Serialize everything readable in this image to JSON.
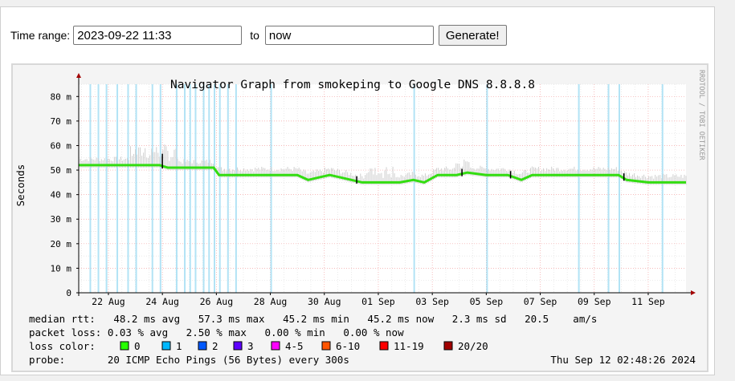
{
  "toolbar": {
    "time_range_label": "Time range:",
    "from_value": "2023-09-22 11:33",
    "to_label": "to",
    "to_value": "now",
    "generate_label": "Generate!"
  },
  "graph": {
    "title": "Navigator Graph from smokeping to Google DNS 8.8.8.8",
    "side_text": "RRDTOOL / TOBI OETIKER",
    "stats": {
      "median_rtt": "median rtt:   48.2 ms avg   57.3 ms max   45.2 ms min   45.2 ms now   2.3 ms sd   20.5    am/s",
      "packet_loss": "packet loss: 0.03 % avg   2.50 % max   0.00 % min   0.00 % now",
      "loss_color_label": "loss color:",
      "probe": "probe:       20 ICMP Echo Pings (56 Bytes) every 300s",
      "timestamp": "Thu Sep 12 02:48:26 2024"
    },
    "loss_legend": [
      {
        "label": "0",
        "color": "#26ff00"
      },
      {
        "label": "1",
        "color": "#00b8ff"
      },
      {
        "label": "2",
        "color": "#0059ff"
      },
      {
        "label": "3",
        "color": "#5e00ff"
      },
      {
        "label": "4-5",
        "color": "#ff00ff"
      },
      {
        "label": "6-10",
        "color": "#ff5500"
      },
      {
        "label": "11-19",
        "color": "#ff0000"
      },
      {
        "label": "20/20",
        "color": "#a10000"
      }
    ]
  },
  "chart_data": {
    "type": "line",
    "title": "Navigator Graph from smokeping to Google DNS 8.8.8.8",
    "ylabel": "Seconds",
    "ylim": [
      0,
      0.085
    ],
    "y_ticks": [
      "0",
      "10 m",
      "20 m",
      "30 m",
      "40 m",
      "50 m",
      "60 m",
      "70 m",
      "80 m"
    ],
    "x_ticks": [
      "22 Aug",
      "24 Aug",
      "26 Aug",
      "28 Aug",
      "30 Aug",
      "01 Sep",
      "03 Sep",
      "05 Sep",
      "07 Sep",
      "09 Sep",
      "11 Sep"
    ],
    "x_range_days": [
      -1.1,
      21.4
    ],
    "grid": true,
    "series": [
      {
        "x": [
          -1.1,
          0.5,
          1.5,
          1.9,
          2.2,
          3.0,
          3.9,
          4.1,
          5.0,
          6.0,
          7.0,
          7.4,
          7.8,
          8.2,
          8.6,
          9.0,
          9.4,
          10.0,
          10.8,
          11.3,
          11.7,
          12.2,
          12.5,
          12.9,
          13.3,
          14.0,
          14.8,
          15.3,
          15.7,
          16.0,
          17.0,
          18.0,
          18.9,
          19.2,
          20.0,
          21.4
        ],
        "y": [
          0.052,
          0.052,
          0.052,
          0.052,
          0.051,
          0.051,
          0.051,
          0.048,
          0.048,
          0.048,
          0.048,
          0.046,
          0.047,
          0.048,
          0.047,
          0.046,
          0.045,
          0.045,
          0.045,
          0.046,
          0.045,
          0.048,
          0.048,
          0.048,
          0.049,
          0.048,
          0.048,
          0.046,
          0.048,
          0.048,
          0.048,
          0.048,
          0.048,
          0.046,
          0.045,
          0.045
        ]
      }
    ],
    "loss_event_days": [
      -0.7,
      -0.4,
      -0.1,
      0.3,
      0.7,
      1.0,
      1.6,
      1.9,
      2.5,
      2.8,
      3.0,
      3.2,
      3.5,
      3.7,
      3.9,
      4.1,
      4.4,
      4.7,
      6.0,
      11.3,
      14.0,
      17.4,
      18.5,
      18.9,
      20.5
    ]
  }
}
